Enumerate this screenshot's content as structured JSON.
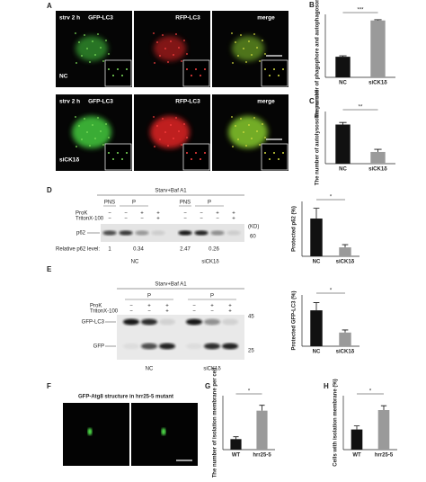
{
  "panel_a": {
    "letter": "A",
    "time": "strv 2 h",
    "columns": [
      "GFP-LC3",
      "RFP-LC3",
      "merge"
    ],
    "rows": [
      "NC",
      "siCK1δ"
    ]
  },
  "charts": [
    {
      "letter": "B",
      "type": "bar",
      "y_label": "The number of phagophore and autophagosome per cell",
      "categories": [
        "NC",
        "siCK1δ"
      ],
      "values": [
        17,
        47
      ],
      "errors": [
        0.8,
        0.6
      ],
      "colors": [
        "#111111",
        "#9a9a9a"
      ],
      "ylim": [
        0,
        52
      ],
      "significance": "***"
    },
    {
      "letter": "C",
      "type": "bar",
      "y_label": "The number of autolysosome per cell",
      "categories": [
        "NC",
        "siCK1δ"
      ],
      "values": [
        15,
        4.5
      ],
      "errors": [
        0.8,
        1
      ],
      "colors": [
        "#111111",
        "#9a9a9a"
      ],
      "ylim": [
        0,
        20
      ],
      "significance": "**"
    },
    {
      "type": "bar",
      "y_label": "Protected p62 (%)",
      "categories": [
        "NC",
        "siCK1δ"
      ],
      "values": [
        55,
        13
      ],
      "errors": [
        15,
        4
      ],
      "colors": [
        "#111111",
        "#9a9a9a"
      ],
      "ylim": [
        0,
        80
      ],
      "significance": "*"
    },
    {
      "type": "bar",
      "y_label": "Protected GFP-LC3 (%)",
      "categories": [
        "NC",
        "siCK1δ"
      ],
      "values": [
        42,
        16
      ],
      "errors": [
        9,
        3
      ],
      "colors": [
        "#111111",
        "#9a9a9a"
      ],
      "ylim": [
        0,
        60
      ],
      "significance": "*"
    },
    {
      "letter": "G",
      "type": "bar",
      "y_label": "The number of isolation membrane per cell",
      "categories": [
        "WT",
        "hrr25-5"
      ],
      "values": [
        0.35,
        1.3
      ],
      "errors": [
        0.08,
        0.18
      ],
      "colors": [
        "#111111",
        "#9a9a9a"
      ],
      "ylim": [
        0,
        1.8
      ],
      "significance": "*"
    },
    {
      "letter": "H",
      "type": "bar",
      "y_label": "Cells with isolation membrane (%)",
      "categories": [
        "WT",
        "hrr25-5"
      ],
      "values": [
        28,
        55
      ],
      "errors": [
        5,
        6
      ],
      "colors": [
        "#111111",
        "#9a9a9a"
      ],
      "ylim": [
        0,
        75
      ],
      "significance": "*"
    }
  ],
  "blot_d": {
    "letter": "D",
    "treatment": "Starv+Baf A1",
    "fractions": [
      "PNS",
      "P",
      "PNS",
      "P"
    ],
    "row_labels": [
      "ProK",
      "TritonX-100"
    ],
    "prok": [
      "−",
      "−",
      "+",
      "+",
      "−",
      "−",
      "+",
      "+"
    ],
    "triton": [
      "−",
      "−",
      "−",
      "+",
      "−",
      "−",
      "−",
      "+"
    ],
    "band": "p62",
    "unit": "(KD)",
    "marker": "60",
    "level_label": "Relative p62 level:",
    "levels": [
      1,
      0.34,
      2.47,
      0.26
    ],
    "groups": [
      "NC",
      "siCK1δ"
    ]
  },
  "blot_e": {
    "letter": "E",
    "treatment": "Starv+Baf A1",
    "fractions": [
      "P",
      "P"
    ],
    "row_labels": [
      "ProK",
      "TritonX-100"
    ],
    "prok": [
      "−",
      "+",
      "+",
      "−",
      "+",
      "+"
    ],
    "triton": [
      "−",
      "−",
      "+",
      "−",
      "−",
      "+"
    ],
    "bands": [
      "GFP-LC3",
      "GFP"
    ],
    "markers": [
      "45",
      "25"
    ],
    "groups": [
      "NC",
      "siCK1δ"
    ]
  },
  "panel_f": {
    "letter": "F",
    "title": "GFP-Atg8 structure in hrr25-5 mutant"
  }
}
